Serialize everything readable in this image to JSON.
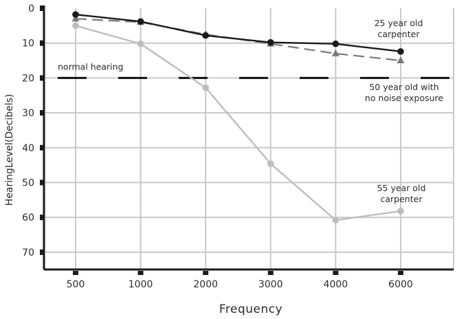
{
  "chart_data": {
    "type": "line",
    "title": "",
    "xlabel": "Frequency",
    "ylabel": "HearingLevel(Decibels)",
    "x_categories": [
      "500",
      "1000",
      "2000",
      "3000",
      "4000",
      "6000"
    ],
    "y_ticks": [
      0,
      10,
      20,
      30,
      40,
      50,
      60,
      70
    ],
    "ylim": [
      0,
      70
    ],
    "y_inverted": true,
    "grid": true,
    "series": [
      {
        "name": "25 year old carpenter",
        "values": [
          1.8,
          3.8,
          7.8,
          9.8,
          10.2,
          12.4
        ],
        "color": "#1a1a1a",
        "marker": "circle",
        "line_style": "solid"
      },
      {
        "name": "50 year old with no noise exposure",
        "values": [
          3.0,
          4.0,
          7.5,
          10.2,
          13.0,
          15.0
        ],
        "color": "#7a7a7a",
        "marker": "triangle",
        "line_style": "dashed"
      },
      {
        "name": "55 year old carpenter",
        "values": [
          5.0,
          10.2,
          22.8,
          44.6,
          60.8,
          58.2
        ],
        "color": "#bdbdbd",
        "marker": "circle",
        "line_style": "solid"
      }
    ],
    "reference_line": {
      "label": "normal hearing",
      "value": 20,
      "color": "#111111",
      "line_style": "dashed"
    },
    "annotations": [
      {
        "lines": [
          "25 year old",
          "carpenter"
        ]
      },
      {
        "lines": [
          "50 year old with",
          "no noise exposure"
        ]
      },
      {
        "lines": [
          "55 year old",
          "carpenter"
        ]
      }
    ]
  }
}
